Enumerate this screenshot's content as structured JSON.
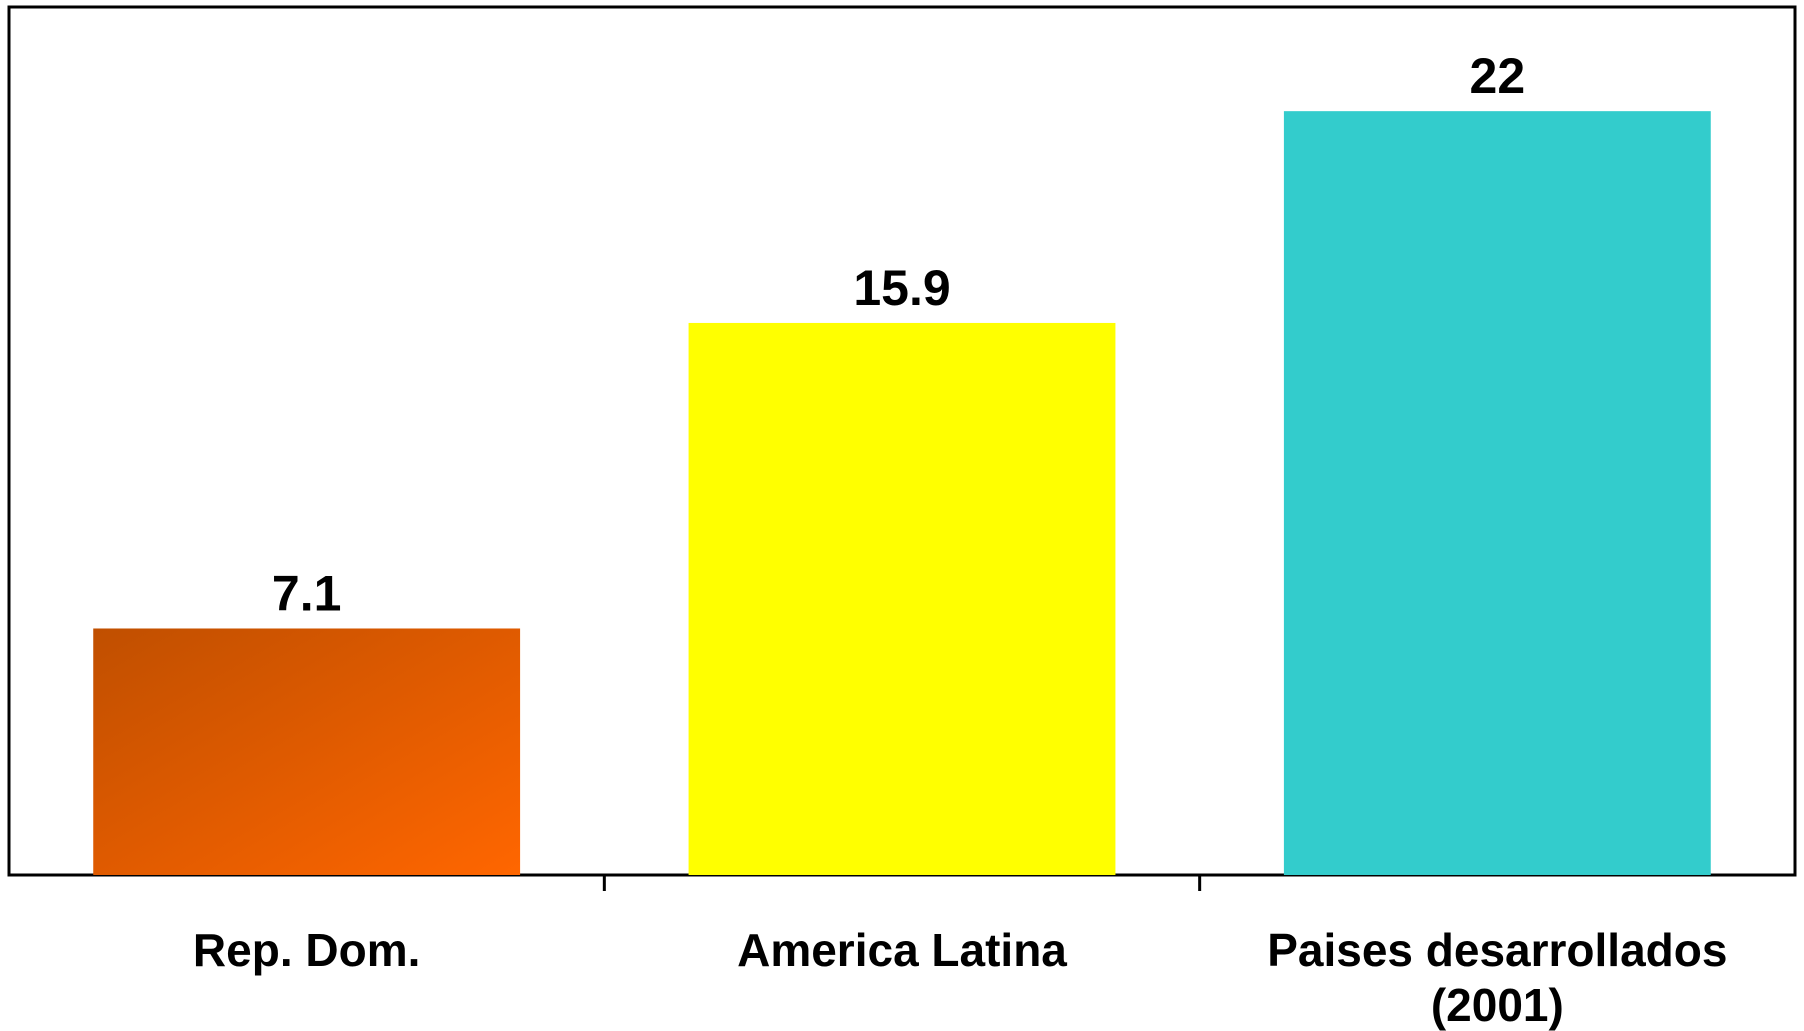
{
  "chart_data": {
    "type": "bar",
    "categories": [
      "Rep. Dom.",
      "America Latina",
      "Paises desarrollados (2001)"
    ],
    "category_lines": [
      [
        "Rep. Dom."
      ],
      [
        "America Latina"
      ],
      [
        "Paises desarrollados",
        "(2001)"
      ]
    ],
    "values": [
      7.1,
      15.9,
      22
    ],
    "data_labels": [
      "7.1",
      "15.9",
      "22"
    ],
    "title": "",
    "xlabel": "",
    "ylabel": "",
    "ylim": [
      0,
      25
    ],
    "grid": false,
    "legend": "none",
    "colors": [
      {
        "type": "gradient",
        "from": "#c04f00",
        "to": "#ff6600"
      },
      {
        "type": "solid",
        "color": "#ffff00"
      },
      {
        "type": "solid",
        "color": "#33cccc"
      }
    ]
  }
}
